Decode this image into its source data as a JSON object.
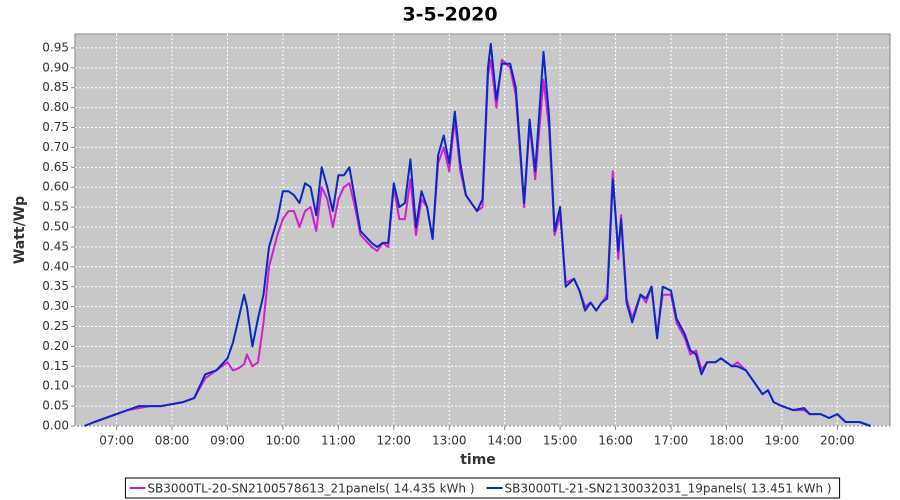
{
  "chart_data": {
    "type": "line",
    "title": "3-5-2020",
    "xlabel": "time",
    "ylabel": "Watt/Wp",
    "x": [
      6.42,
      6.6,
      6.8,
      7.0,
      7.2,
      7.4,
      7.6,
      7.8,
      8.0,
      8.2,
      8.4,
      8.6,
      8.8,
      9.0,
      9.1,
      9.2,
      9.3,
      9.35,
      9.45,
      9.55,
      9.65,
      9.75,
      9.9,
      10.0,
      10.1,
      10.2,
      10.3,
      10.4,
      10.5,
      10.6,
      10.7,
      10.8,
      10.9,
      11.0,
      11.1,
      11.2,
      11.3,
      11.4,
      11.6,
      11.7,
      11.8,
      11.9,
      12.0,
      12.1,
      12.2,
      12.3,
      12.4,
      12.5,
      12.6,
      12.7,
      12.8,
      12.9,
      13.0,
      13.1,
      13.2,
      13.3,
      13.5,
      13.6,
      13.7,
      13.75,
      13.85,
      13.95,
      14.1,
      14.2,
      14.35,
      14.45,
      14.55,
      14.7,
      14.8,
      14.9,
      15.0,
      15.1,
      15.25,
      15.35,
      15.45,
      15.55,
      15.65,
      15.75,
      15.85,
      15.95,
      16.05,
      16.1,
      16.2,
      16.3,
      16.45,
      16.55,
      16.65,
      16.75,
      16.85,
      17.0,
      17.1,
      17.25,
      17.35,
      17.45,
      17.55,
      17.65,
      17.8,
      17.9,
      18.0,
      18.1,
      18.2,
      18.35,
      18.5,
      18.65,
      18.75,
      18.85,
      19.0,
      19.2,
      19.4,
      19.5,
      19.7,
      19.85,
      20.0,
      20.15,
      20.4,
      20.6
    ],
    "series": [
      {
        "name": "SB3000TL-20-SN2100578613_21panels( 14.435 kWh )",
        "color": "#d21ed2",
        "values": [
          0,
          0.01,
          0.02,
          0.03,
          0.04,
          0.045,
          0.05,
          0.05,
          0.055,
          0.06,
          0.07,
          0.12,
          0.14,
          0.16,
          0.14,
          0.145,
          0.155,
          0.18,
          0.15,
          0.16,
          0.26,
          0.4,
          0.48,
          0.52,
          0.54,
          0.54,
          0.5,
          0.54,
          0.55,
          0.49,
          0.6,
          0.57,
          0.5,
          0.57,
          0.6,
          0.61,
          0.55,
          0.48,
          0.45,
          0.44,
          0.46,
          0.45,
          0.6,
          0.52,
          0.52,
          0.62,
          0.48,
          0.57,
          0.55,
          0.47,
          0.66,
          0.7,
          0.64,
          0.77,
          0.64,
          0.58,
          0.54,
          0.55,
          0.88,
          0.92,
          0.8,
          0.92,
          0.9,
          0.83,
          0.55,
          0.76,
          0.62,
          0.87,
          0.75,
          0.48,
          0.53,
          0.36,
          0.37,
          0.34,
          0.3,
          0.31,
          0.29,
          0.31,
          0.33,
          0.64,
          0.42,
          0.53,
          0.32,
          0.27,
          0.33,
          0.31,
          0.35,
          0.23,
          0.33,
          0.33,
          0.26,
          0.22,
          0.18,
          0.19,
          0.14,
          0.16,
          0.16,
          0.17,
          0.16,
          0.15,
          0.16,
          0.14,
          0.11,
          0.08,
          0.09,
          0.06,
          0.05,
          0.04,
          0.04,
          0.03,
          0.03,
          0.02,
          0.03,
          0.01,
          0.01,
          0
        ]
      },
      {
        "name": "SB3000TL-21-SN2130032031_19panels( 13.451 kWh )",
        "color": "#0a28c8",
        "values": [
          0,
          0.01,
          0.02,
          0.03,
          0.04,
          0.05,
          0.05,
          0.05,
          0.055,
          0.06,
          0.07,
          0.13,
          0.14,
          0.17,
          0.21,
          0.27,
          0.33,
          0.3,
          0.2,
          0.27,
          0.33,
          0.45,
          0.52,
          0.59,
          0.59,
          0.58,
          0.56,
          0.61,
          0.6,
          0.53,
          0.65,
          0.6,
          0.54,
          0.63,
          0.63,
          0.65,
          0.57,
          0.49,
          0.46,
          0.45,
          0.46,
          0.46,
          0.61,
          0.55,
          0.56,
          0.67,
          0.5,
          0.59,
          0.55,
          0.47,
          0.68,
          0.73,
          0.66,
          0.79,
          0.66,
          0.58,
          0.54,
          0.57,
          0.9,
          0.96,
          0.82,
          0.91,
          0.91,
          0.85,
          0.56,
          0.77,
          0.64,
          0.94,
          0.78,
          0.49,
          0.55,
          0.35,
          0.37,
          0.34,
          0.29,
          0.31,
          0.29,
          0.31,
          0.32,
          0.62,
          0.44,
          0.52,
          0.31,
          0.26,
          0.33,
          0.32,
          0.35,
          0.22,
          0.35,
          0.34,
          0.27,
          0.23,
          0.19,
          0.18,
          0.13,
          0.16,
          0.16,
          0.17,
          0.16,
          0.15,
          0.15,
          0.14,
          0.11,
          0.08,
          0.09,
          0.06,
          0.05,
          0.04,
          0.045,
          0.03,
          0.03,
          0.02,
          0.03,
          0.01,
          0.01,
          0
        ]
      }
    ],
    "xlim": [
      6.25,
      20.95
    ],
    "ylim": [
      0,
      0.985
    ],
    "xticks": [
      {
        "value": 7,
        "label": "07:00"
      },
      {
        "value": 8,
        "label": "08:00"
      },
      {
        "value": 9,
        "label": "09:00"
      },
      {
        "value": 10,
        "label": "10:00"
      },
      {
        "value": 11,
        "label": "11:00"
      },
      {
        "value": 12,
        "label": "12:00"
      },
      {
        "value": 13,
        "label": "13:00"
      },
      {
        "value": 14,
        "label": "14:00"
      },
      {
        "value": 15,
        "label": "15:00"
      },
      {
        "value": 16,
        "label": "16:00"
      },
      {
        "value": 17,
        "label": "17:00"
      },
      {
        "value": 18,
        "label": "18:00"
      },
      {
        "value": 19,
        "label": "19:00"
      },
      {
        "value": 20,
        "label": "20:00"
      }
    ],
    "yticks": [
      {
        "value": 0,
        "label": "0.00"
      },
      0.05,
      {
        "value": 0.1,
        "label": "0.10"
      },
      0.15,
      {
        "value": 0.2,
        "label": "0.20"
      },
      0.25,
      {
        "value": 0.3,
        "label": "0.30"
      },
      0.35,
      {
        "value": 0.4,
        "label": "0.40"
      },
      0.45,
      {
        "value": 0.5,
        "label": "0.50"
      },
      0.55,
      {
        "value": 0.6,
        "label": "0.60"
      },
      0.65,
      {
        "value": 0.7,
        "label": "0.70"
      },
      0.75,
      {
        "value": 0.8,
        "label": "0.80"
      },
      0.85,
      {
        "value": 0.9,
        "label": "0.90"
      },
      0.95
    ],
    "grid": true,
    "legend": "bottom"
  }
}
